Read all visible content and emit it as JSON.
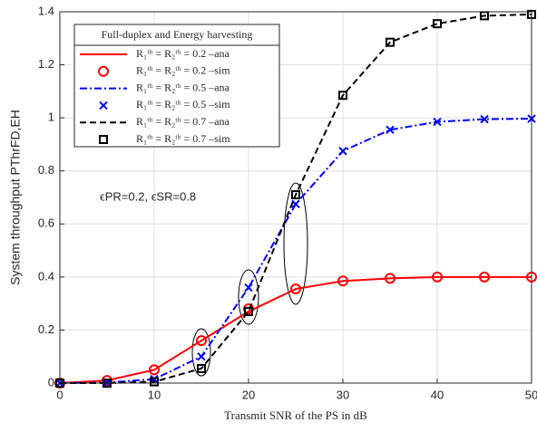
{
  "chart_data": {
    "type": "line",
    "xlabel": "Transmit SNR of the PS in dB",
    "ylabel": "System throughput PThrFD,EH",
    "legend_title": "Full-duplex and Energy harvesting",
    "annotation": "ϵPR=0.2, ϵSR=0.8",
    "x": [
      0,
      5,
      10,
      15,
      20,
      25,
      30,
      35,
      40,
      45,
      50
    ],
    "xlim": [
      0,
      50
    ],
    "xticks": [
      0,
      10,
      20,
      30,
      40,
      50
    ],
    "ylim": [
      0,
      1.4
    ],
    "yticks": [
      0,
      0.2,
      0.4,
      0.6,
      0.8,
      1,
      1.2,
      1.4
    ],
    "grid": true,
    "legend_position": "upper left",
    "series": [
      {
        "name": "R₁ᵗʰ = R₂ᵗʰ = 0.2 –ana",
        "color": "#ff0000",
        "linestyle": "solid",
        "marker": "none",
        "values": [
          0,
          0.01,
          0.05,
          0.16,
          0.27,
          0.355,
          0.385,
          0.395,
          0.4,
          0.4,
          0.4
        ]
      },
      {
        "name": "R₁ᵗʰ = R₂ᵗʰ = 0.2 –sim",
        "color": "#ff0000",
        "linestyle": "none",
        "marker": "circle",
        "values": [
          0,
          0.01,
          0.05,
          0.16,
          0.28,
          0.355,
          0.385,
          0.395,
          0.4,
          0.4,
          0.4
        ]
      },
      {
        "name": "R₁ᵗʰ = R₂ᵗʰ = 0.5 –ana",
        "color": "#0000ff",
        "linestyle": "dashdot",
        "marker": "none",
        "values": [
          0,
          0.002,
          0.015,
          0.1,
          0.36,
          0.675,
          0.875,
          0.955,
          0.985,
          0.995,
          0.997
        ]
      },
      {
        "name": "R₁ᵗʰ = R₂ᵗʰ = 0.5 –sim",
        "color": "#0000ff",
        "linestyle": "none",
        "marker": "x",
        "values": [
          0,
          0.002,
          0.015,
          0.1,
          0.36,
          0.675,
          0.875,
          0.955,
          0.985,
          0.995,
          0.997
        ]
      },
      {
        "name": "R₁ᵗʰ = R₂ᵗʰ = 0.7 –ana",
        "color": "#000000",
        "linestyle": "dashed",
        "marker": "none",
        "values": [
          0,
          0,
          0.005,
          0.055,
          0.27,
          0.71,
          1.085,
          1.285,
          1.355,
          1.385,
          1.39
        ]
      },
      {
        "name": "R₁ᵗʰ = R₂ᵗʰ = 0.7 –sim",
        "color": "#000000",
        "linestyle": "none",
        "marker": "square",
        "values": [
          0,
          0,
          0.005,
          0.055,
          0.27,
          0.71,
          1.085,
          1.285,
          1.355,
          1.385,
          1.39
        ]
      }
    ]
  }
}
